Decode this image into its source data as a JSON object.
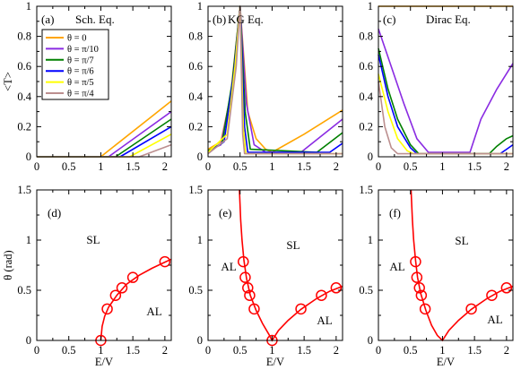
{
  "chart_data": [
    {
      "type": "line",
      "panel": "(a)",
      "title": "Sch. Eq.",
      "ylabel": "<T>",
      "xlabel": "",
      "xlim": [
        0,
        2.1
      ],
      "ylim": [
        0,
        1
      ],
      "xticks": [
        0,
        0.5,
        1,
        1.5,
        2
      ],
      "yticks": [
        0,
        0.2,
        0.4,
        0.6,
        0.8,
        1
      ],
      "series": [
        {
          "name": "θ = 0",
          "color": "#FFA500",
          "points": [
            [
              0,
              0
            ],
            [
              1.0,
              0
            ],
            [
              2.1,
              0.37
            ]
          ]
        },
        {
          "name": "θ = π/10",
          "color": "#8A2BE2",
          "points": [
            [
              0,
              0
            ],
            [
              1.12,
              0
            ],
            [
              2.1,
              0.3
            ]
          ]
        },
        {
          "name": "θ = π/7",
          "color": "#008000",
          "points": [
            [
              0,
              0
            ],
            [
              1.23,
              0
            ],
            [
              2.1,
              0.25
            ]
          ]
        },
        {
          "name": "θ = π/6",
          "color": "#0000FF",
          "points": [
            [
              0,
              0
            ],
            [
              1.3,
              0
            ],
            [
              2.1,
              0.2
            ]
          ]
        },
        {
          "name": "θ = π/5",
          "color": "#FFFF00",
          "points": [
            [
              0,
              0
            ],
            [
              1.45,
              0
            ],
            [
              2.1,
              0.15
            ]
          ]
        },
        {
          "name": "θ = π/4",
          "color": "#BC8F8F",
          "points": [
            [
              0,
              0
            ],
            [
              1.6,
              0
            ],
            [
              2.1,
              0.08
            ]
          ]
        }
      ]
    },
    {
      "type": "line",
      "panel": "(b)",
      "title": "KG Eq.",
      "xlim": [
        0,
        2.1
      ],
      "ylim": [
        0,
        1
      ],
      "xticks": [
        0,
        0.5,
        1,
        1.5,
        2
      ],
      "series": [
        {
          "color": "#FFA500",
          "points": [
            [
              0,
              0.05
            ],
            [
              0.2,
              0.1
            ],
            [
              0.35,
              0.4
            ],
            [
              0.5,
              1.0
            ],
            [
              0.62,
              0.3
            ],
            [
              0.75,
              0.12
            ],
            [
              0.9,
              0.05
            ],
            [
              1.0,
              0.03
            ],
            [
              1.5,
              0.15
            ],
            [
              2.1,
              0.31
            ]
          ]
        },
        {
          "color": "#8A2BE2",
          "points": [
            [
              0,
              0.04
            ],
            [
              0.2,
              0.08
            ],
            [
              0.37,
              0.45
            ],
            [
              0.5,
              1.0
            ],
            [
              0.6,
              0.35
            ],
            [
              0.72,
              0.08
            ],
            [
              0.9,
              0.03
            ],
            [
              1.45,
              0.03
            ],
            [
              2.1,
              0.25
            ]
          ]
        },
        {
          "color": "#008000",
          "points": [
            [
              0,
              0.04
            ],
            [
              0.22,
              0.09
            ],
            [
              0.38,
              0.5
            ],
            [
              0.5,
              1.0
            ],
            [
              0.58,
              0.3
            ],
            [
              0.66,
              0.05
            ],
            [
              1.7,
              0.03
            ],
            [
              2.1,
              0.16
            ]
          ]
        },
        {
          "color": "#0000FF",
          "points": [
            [
              0,
              0.03
            ],
            [
              0.25,
              0.1
            ],
            [
              0.4,
              0.55
            ],
            [
              0.5,
              1.0
            ],
            [
              0.57,
              0.2
            ],
            [
              0.62,
              0.03
            ],
            [
              1.9,
              0.03
            ],
            [
              2.1,
              0.09
            ]
          ]
        },
        {
          "color": "#FFFF00",
          "points": [
            [
              0,
              0.03
            ],
            [
              0.3,
              0.15
            ],
            [
              0.42,
              0.6
            ],
            [
              0.5,
              1.0
            ],
            [
              0.55,
              0.2
            ],
            [
              0.59,
              0.02
            ],
            [
              2.1,
              0.02
            ]
          ]
        },
        {
          "color": "#BC8F8F",
          "points": [
            [
              0,
              0.02
            ],
            [
              0.3,
              0.12
            ],
            [
              0.44,
              0.6
            ],
            [
              0.5,
              1.0
            ],
            [
              0.54,
              0.15
            ],
            [
              0.57,
              0.02
            ],
            [
              2.1,
              0.02
            ]
          ]
        }
      ]
    },
    {
      "type": "line",
      "panel": "(c)",
      "title": "Dirac Eq.",
      "xlim": [
        0,
        2.1
      ],
      "ylim": [
        0,
        1
      ],
      "xticks": [
        0,
        0.5,
        1,
        1.5,
        2
      ],
      "series": [
        {
          "color": "#FFA500",
          "points": [
            [
              0,
              1.0
            ],
            [
              2.1,
              1.0
            ]
          ]
        },
        {
          "color": "#8A2BE2",
          "points": [
            [
              0,
              0.85
            ],
            [
              0.2,
              0.6
            ],
            [
              0.4,
              0.35
            ],
            [
              0.6,
              0.12
            ],
            [
              0.78,
              0.03
            ],
            [
              1.43,
              0.03
            ],
            [
              1.6,
              0.25
            ],
            [
              1.85,
              0.45
            ],
            [
              2.1,
              0.62
            ]
          ]
        },
        {
          "color": "#008000",
          "points": [
            [
              0,
              0.72
            ],
            [
              0.15,
              0.45
            ],
            [
              0.3,
              0.25
            ],
            [
              0.5,
              0.08
            ],
            [
              0.63,
              0.02
            ],
            [
              1.73,
              0.02
            ],
            [
              1.85,
              0.07
            ],
            [
              2.0,
              0.12
            ],
            [
              2.1,
              0.14
            ]
          ]
        },
        {
          "color": "#0000FF",
          "points": [
            [
              0,
              0.68
            ],
            [
              0.15,
              0.4
            ],
            [
              0.3,
              0.2
            ],
            [
              0.5,
              0.06
            ],
            [
              0.6,
              0.02
            ],
            [
              1.9,
              0.02
            ],
            [
              2.0,
              0.05
            ],
            [
              2.1,
              0.08
            ]
          ]
        },
        {
          "color": "#FFFF00",
          "points": [
            [
              0,
              0.55
            ],
            [
              0.15,
              0.3
            ],
            [
              0.3,
              0.12
            ],
            [
              0.45,
              0.04
            ],
            [
              0.55,
              0.02
            ],
            [
              2.1,
              0.02
            ]
          ]
        },
        {
          "color": "#BC8F8F",
          "points": [
            [
              0,
              0.5
            ],
            [
              0.1,
              0.2
            ],
            [
              0.2,
              0.06
            ],
            [
              0.3,
              0.02
            ],
            [
              2.1,
              0.02
            ]
          ]
        }
      ]
    },
    {
      "type": "scatter",
      "panel": "(d)",
      "ylabel": "θ (rad)",
      "xlabel": "E/V",
      "xlim": [
        0,
        2.1
      ],
      "ylim": [
        0,
        1.5
      ],
      "xticks": [
        0,
        0.5,
        1,
        1.5,
        2
      ],
      "yticks": [
        0,
        0.5,
        1,
        1.5
      ],
      "regions": [
        "SL",
        "AL"
      ],
      "points": [
        [
          1.0,
          0.0
        ],
        [
          1.1,
          0.314
        ],
        [
          1.23,
          0.449
        ],
        [
          1.33,
          0.524
        ],
        [
          1.5,
          0.628
        ],
        [
          2.0,
          0.785
        ]
      ],
      "curve": [
        [
          1.0,
          0.0
        ],
        [
          1.02,
          0.14
        ],
        [
          1.06,
          0.24
        ],
        [
          1.12,
          0.33
        ],
        [
          1.25,
          0.45
        ],
        [
          1.4,
          0.56
        ],
        [
          1.6,
          0.65
        ],
        [
          1.8,
          0.72
        ],
        [
          2.0,
          0.78
        ],
        [
          2.1,
          0.81
        ]
      ]
    },
    {
      "type": "scatter",
      "panel": "(e)",
      "xlabel": "E/V",
      "xlim": [
        0,
        2.1
      ],
      "ylim": [
        0,
        1.5
      ],
      "xticks": [
        0,
        0.5,
        1,
        1.5,
        2
      ],
      "regions": [
        "SL",
        "AL",
        "AL"
      ],
      "points": [
        [
          0.55,
          0.785
        ],
        [
          0.58,
          0.628
        ],
        [
          0.62,
          0.524
        ],
        [
          0.65,
          0.449
        ],
        [
          0.72,
          0.314
        ],
        [
          1.0,
          0.0
        ],
        [
          1.45,
          0.314
        ],
        [
          1.77,
          0.449
        ],
        [
          2.0,
          0.524
        ]
      ],
      "curve": [
        [
          0.49,
          1.5
        ],
        [
          0.51,
          1.2
        ],
        [
          0.53,
          1.0
        ],
        [
          0.56,
          0.8
        ],
        [
          0.6,
          0.62
        ],
        [
          0.66,
          0.45
        ],
        [
          0.75,
          0.3
        ],
        [
          0.85,
          0.17
        ],
        [
          0.95,
          0.06
        ],
        [
          1.0,
          0.0
        ],
        [
          1.1,
          0.1
        ],
        [
          1.25,
          0.2
        ],
        [
          1.45,
          0.31
        ],
        [
          1.7,
          0.42
        ],
        [
          1.9,
          0.49
        ],
        [
          2.1,
          0.54
        ]
      ]
    },
    {
      "type": "scatter",
      "panel": "(f)",
      "xlabel": "E/V",
      "xlim": [
        0,
        2.1
      ],
      "ylim": [
        0,
        1.5
      ],
      "xticks": [
        0,
        0.5,
        1,
        1.5,
        2
      ],
      "regions": [
        "SL",
        "AL",
        "AL"
      ],
      "points": [
        [
          0.58,
          0.785
        ],
        [
          0.6,
          0.628
        ],
        [
          0.64,
          0.524
        ],
        [
          0.67,
          0.449
        ],
        [
          0.73,
          0.314
        ],
        [
          1.45,
          0.314
        ],
        [
          1.77,
          0.449
        ],
        [
          2.0,
          0.524
        ]
      ],
      "curve": [
        [
          0.51,
          1.5
        ],
        [
          0.53,
          1.2
        ],
        [
          0.55,
          1.0
        ],
        [
          0.58,
          0.8
        ],
        [
          0.61,
          0.63
        ],
        [
          0.66,
          0.47
        ],
        [
          0.74,
          0.3
        ],
        [
          0.83,
          0.15
        ],
        [
          0.92,
          0.05
        ],
        [
          1.0,
          0.0
        ],
        [
          1.1,
          0.1
        ],
        [
          1.25,
          0.2
        ],
        [
          1.45,
          0.31
        ],
        [
          1.7,
          0.42
        ],
        [
          1.9,
          0.49
        ],
        [
          2.1,
          0.54
        ]
      ]
    }
  ]
}
